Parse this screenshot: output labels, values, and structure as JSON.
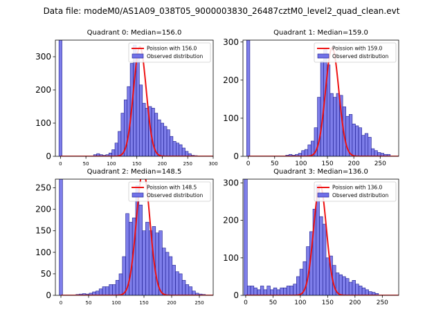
{
  "suptitle": "Data file: modeM0/AS1A09_038T05_9000003830_26487cztM0_level2_quad_clean.evt",
  "colors": {
    "hist_fill": "#7070e8",
    "hist_edge": "#1a1a8c",
    "poisson": "#ee1111",
    "axis": "#000000"
  },
  "chart_data": [
    {
      "type": "bar",
      "title": "Quadrant 0: Median=156.0",
      "median": 156.0,
      "xlim": [
        -10,
        300
      ],
      "ylim": [
        0,
        350
      ],
      "xticks": [
        0,
        50,
        100,
        150,
        200,
        250,
        300
      ],
      "yticks": [
        0,
        100,
        200,
        300
      ],
      "bin_width": 6,
      "legend": {
        "poisson": "Poission with 156.0",
        "observed": "Observed distribution"
      },
      "bins": [
        {
          "x": 0,
          "y": 350
        },
        {
          "x": 68,
          "y": 5
        },
        {
          "x": 74,
          "y": 8
        },
        {
          "x": 80,
          "y": 5
        },
        {
          "x": 86,
          "y": 3
        },
        {
          "x": 92,
          "y": 5
        },
        {
          "x": 98,
          "y": 10
        },
        {
          "x": 104,
          "y": 20
        },
        {
          "x": 110,
          "y": 40
        },
        {
          "x": 116,
          "y": 75
        },
        {
          "x": 122,
          "y": 130
        },
        {
          "x": 128,
          "y": 170
        },
        {
          "x": 134,
          "y": 210
        },
        {
          "x": 140,
          "y": 280
        },
        {
          "x": 146,
          "y": 335
        },
        {
          "x": 152,
          "y": 310
        },
        {
          "x": 158,
          "y": 215
        },
        {
          "x": 164,
          "y": 160
        },
        {
          "x": 170,
          "y": 145
        },
        {
          "x": 176,
          "y": 150
        },
        {
          "x": 182,
          "y": 145
        },
        {
          "x": 188,
          "y": 130
        },
        {
          "x": 194,
          "y": 110
        },
        {
          "x": 200,
          "y": 100
        },
        {
          "x": 206,
          "y": 90
        },
        {
          "x": 212,
          "y": 80
        },
        {
          "x": 218,
          "y": 60
        },
        {
          "x": 224,
          "y": 45
        },
        {
          "x": 230,
          "y": 40
        },
        {
          "x": 236,
          "y": 35
        },
        {
          "x": 242,
          "y": 25
        },
        {
          "x": 248,
          "y": 15
        },
        {
          "x": 254,
          "y": 8
        },
        {
          "x": 260,
          "y": 3
        },
        {
          "x": 266,
          "y": 2
        }
      ],
      "poisson_peak": 330
    },
    {
      "type": "bar",
      "title": "Quadrant 1: Median=159.0",
      "median": 159.0,
      "xlim": [
        -10,
        285
      ],
      "ylim": [
        0,
        305
      ],
      "xticks": [
        0,
        50,
        100,
        150,
        200,
        250
      ],
      "yticks": [
        0,
        100,
        200,
        300
      ],
      "bin_width": 6,
      "legend": {
        "poisson": "Poission with 159.0",
        "observed": "Observed distribution"
      },
      "bins": [
        {
          "x": 0,
          "y": 305
        },
        {
          "x": 74,
          "y": 3
        },
        {
          "x": 80,
          "y": 5
        },
        {
          "x": 86,
          "y": 3
        },
        {
          "x": 92,
          "y": 5
        },
        {
          "x": 98,
          "y": 8
        },
        {
          "x": 104,
          "y": 15
        },
        {
          "x": 110,
          "y": 18
        },
        {
          "x": 116,
          "y": 30
        },
        {
          "x": 122,
          "y": 40
        },
        {
          "x": 128,
          "y": 75
        },
        {
          "x": 134,
          "y": 155
        },
        {
          "x": 140,
          "y": 250
        },
        {
          "x": 146,
          "y": 280
        },
        {
          "x": 152,
          "y": 240
        },
        {
          "x": 158,
          "y": 165
        },
        {
          "x": 164,
          "y": 155
        },
        {
          "x": 170,
          "y": 165
        },
        {
          "x": 176,
          "y": 160
        },
        {
          "x": 182,
          "y": 130
        },
        {
          "x": 188,
          "y": 105
        },
        {
          "x": 194,
          "y": 110
        },
        {
          "x": 200,
          "y": 85
        },
        {
          "x": 206,
          "y": 80
        },
        {
          "x": 212,
          "y": 75
        },
        {
          "x": 218,
          "y": 55
        },
        {
          "x": 224,
          "y": 60
        },
        {
          "x": 230,
          "y": 50
        },
        {
          "x": 236,
          "y": 20
        },
        {
          "x": 242,
          "y": 15
        },
        {
          "x": 248,
          "y": 10
        },
        {
          "x": 254,
          "y": 8
        },
        {
          "x": 260,
          "y": 5
        },
        {
          "x": 266,
          "y": 5
        }
      ],
      "poisson_peak": 285
    },
    {
      "type": "bar",
      "title": "Quadrant 2: Median=148.5",
      "median": 148.5,
      "xlim": [
        -10,
        275
      ],
      "ylim": [
        0,
        270
      ],
      "xticks": [
        0,
        50,
        100,
        150,
        200,
        250
      ],
      "yticks": [
        0,
        50,
        100,
        150,
        200,
        250
      ],
      "bin_width": 6,
      "legend": {
        "poisson": "Poission with 148.5",
        "observed": "Observed distribution"
      },
      "bins": [
        {
          "x": 0,
          "y": 270
        },
        {
          "x": 30,
          "y": 2
        },
        {
          "x": 36,
          "y": 3
        },
        {
          "x": 42,
          "y": 4
        },
        {
          "x": 48,
          "y": 3
        },
        {
          "x": 54,
          "y": 5
        },
        {
          "x": 60,
          "y": 8
        },
        {
          "x": 66,
          "y": 10
        },
        {
          "x": 72,
          "y": 15
        },
        {
          "x": 78,
          "y": 20
        },
        {
          "x": 84,
          "y": 20
        },
        {
          "x": 90,
          "y": 25
        },
        {
          "x": 96,
          "y": 25
        },
        {
          "x": 102,
          "y": 35
        },
        {
          "x": 108,
          "y": 50
        },
        {
          "x": 114,
          "y": 90
        },
        {
          "x": 120,
          "y": 190
        },
        {
          "x": 126,
          "y": 170
        },
        {
          "x": 132,
          "y": 180
        },
        {
          "x": 138,
          "y": 255
        },
        {
          "x": 144,
          "y": 210
        },
        {
          "x": 150,
          "y": 150
        },
        {
          "x": 156,
          "y": 170
        },
        {
          "x": 162,
          "y": 150
        },
        {
          "x": 168,
          "y": 160
        },
        {
          "x": 174,
          "y": 145
        },
        {
          "x": 180,
          "y": 150
        },
        {
          "x": 186,
          "y": 110
        },
        {
          "x": 192,
          "y": 100
        },
        {
          "x": 198,
          "y": 90
        },
        {
          "x": 204,
          "y": 70
        },
        {
          "x": 210,
          "y": 55
        },
        {
          "x": 216,
          "y": 50
        },
        {
          "x": 222,
          "y": 35
        },
        {
          "x": 228,
          "y": 25
        },
        {
          "x": 234,
          "y": 20
        },
        {
          "x": 240,
          "y": 10
        },
        {
          "x": 246,
          "y": 5
        },
        {
          "x": 252,
          "y": 3
        },
        {
          "x": 258,
          "y": 2
        }
      ],
      "poisson_peak": 290
    },
    {
      "type": "bar",
      "title": "Quadrant 3: Median=136.0",
      "median": 136.0,
      "xlim": [
        -5,
        280
      ],
      "ylim": [
        0,
        310
      ],
      "xticks": [
        0,
        50,
        100,
        150,
        200,
        250
      ],
      "yticks": [
        0,
        100,
        200,
        300
      ],
      "bin_width": 6,
      "legend": {
        "poisson": "Poission with 136.0",
        "observed": "Observed distribution"
      },
      "bins": [
        {
          "x": 0,
          "y": 310
        },
        {
          "x": 6,
          "y": 25
        },
        {
          "x": 12,
          "y": 25
        },
        {
          "x": 18,
          "y": 20
        },
        {
          "x": 24,
          "y": 15
        },
        {
          "x": 30,
          "y": 25
        },
        {
          "x": 36,
          "y": 15
        },
        {
          "x": 42,
          "y": 25
        },
        {
          "x": 48,
          "y": 15
        },
        {
          "x": 54,
          "y": 20
        },
        {
          "x": 60,
          "y": 15
        },
        {
          "x": 66,
          "y": 20
        },
        {
          "x": 72,
          "y": 20
        },
        {
          "x": 78,
          "y": 25
        },
        {
          "x": 84,
          "y": 25
        },
        {
          "x": 90,
          "y": 30
        },
        {
          "x": 96,
          "y": 50
        },
        {
          "x": 102,
          "y": 70
        },
        {
          "x": 108,
          "y": 90
        },
        {
          "x": 114,
          "y": 130
        },
        {
          "x": 120,
          "y": 170
        },
        {
          "x": 126,
          "y": 230
        },
        {
          "x": 132,
          "y": 295
        },
        {
          "x": 138,
          "y": 210
        },
        {
          "x": 144,
          "y": 190
        },
        {
          "x": 150,
          "y": 100
        },
        {
          "x": 156,
          "y": 105
        },
        {
          "x": 162,
          "y": 80
        },
        {
          "x": 168,
          "y": 60
        },
        {
          "x": 174,
          "y": 55
        },
        {
          "x": 180,
          "y": 50
        },
        {
          "x": 186,
          "y": 45
        },
        {
          "x": 192,
          "y": 35
        },
        {
          "x": 198,
          "y": 40
        },
        {
          "x": 204,
          "y": 30
        },
        {
          "x": 210,
          "y": 25
        },
        {
          "x": 216,
          "y": 20
        },
        {
          "x": 222,
          "y": 15
        },
        {
          "x": 228,
          "y": 10
        },
        {
          "x": 234,
          "y": 8
        },
        {
          "x": 240,
          "y": 5
        }
      ],
      "poisson_peak": 295
    }
  ]
}
